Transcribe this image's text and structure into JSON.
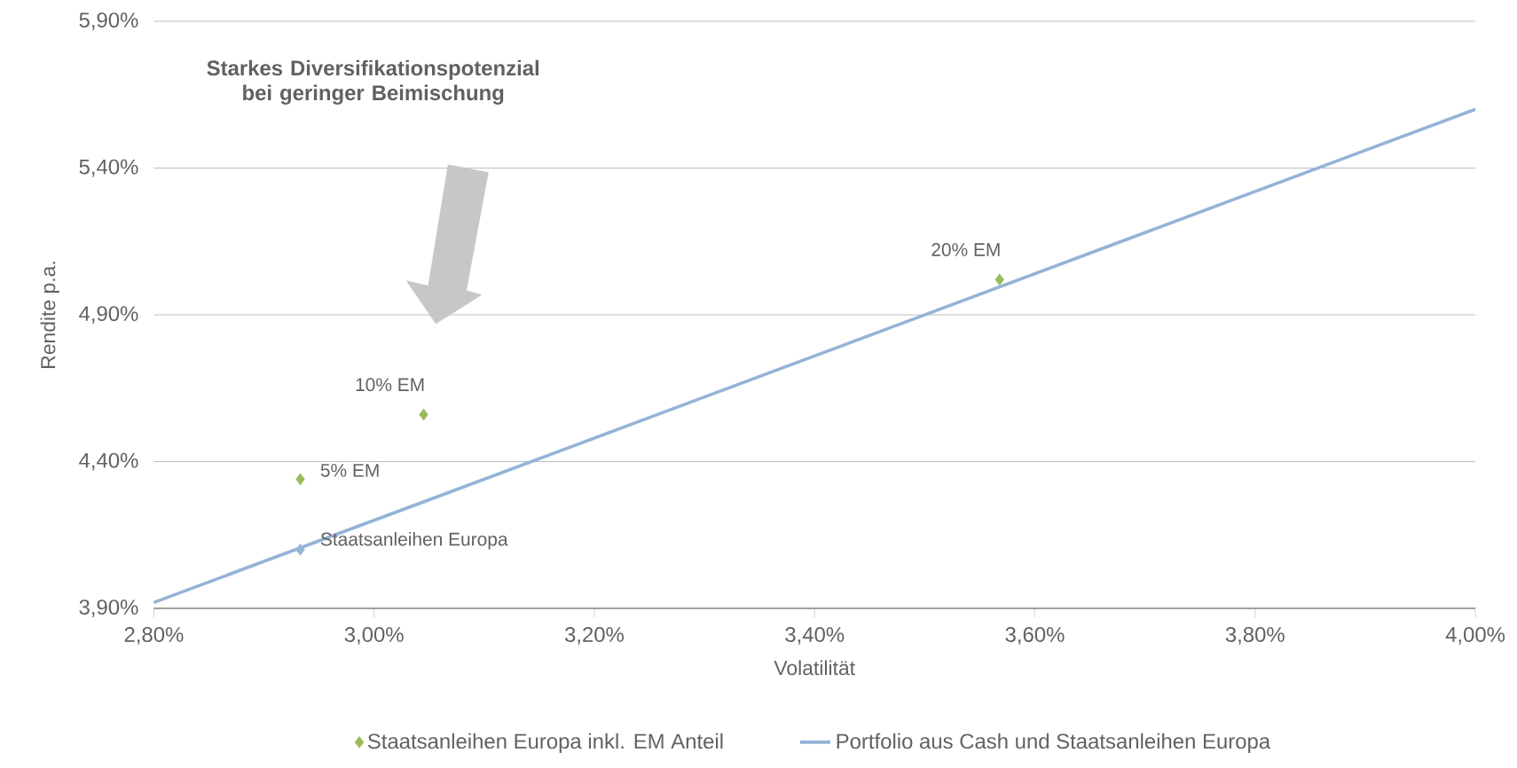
{
  "chart_data": {
    "type": "scatter",
    "xlabel": "Volatilität",
    "ylabel": "Rendite p.a.",
    "xlim": [
      2.8,
      4.0
    ],
    "ylim": [
      3.9,
      5.9
    ],
    "xticks": [
      {
        "value": 2.8,
        "label": "2,80%"
      },
      {
        "value": 3.0,
        "label": "3,00%"
      },
      {
        "value": 3.2,
        "label": "3,20%"
      },
      {
        "value": 3.4,
        "label": "3,40%"
      },
      {
        "value": 3.6,
        "label": "3,60%"
      },
      {
        "value": 3.8,
        "label": "3,80%"
      },
      {
        "value": 4.0,
        "label": "4,00%"
      }
    ],
    "yticks": [
      {
        "value": 3.9,
        "label": "3,90%"
      },
      {
        "value": 4.4,
        "label": "4,40%"
      },
      {
        "value": 4.9,
        "label": "4,90%"
      },
      {
        "value": 5.4,
        "label": "5,40%"
      },
      {
        "value": 5.9,
        "label": "5,90%"
      }
    ],
    "grid": "y",
    "legend": "bottom",
    "series": [
      {
        "name": "Staatsanleihen Europa inkl. EM Anteil",
        "type": "scatter",
        "marker": "diamond",
        "color": "#9bbb59",
        "x": [
          2.933,
          3.045,
          3.568
        ],
        "values": [
          4.34,
          4.56,
          5.02
        ]
      },
      {
        "name": "Portfolio aus Cash und Staatsanleihen Europa",
        "type": "line",
        "marker": "none",
        "color": "#95b3d7",
        "x": [
          2.8,
          4.0
        ],
        "values": [
          3.92,
          5.6
        ]
      },
      {
        "type": "scatter",
        "marker": "diamond",
        "color": "#95b3d7",
        "x": [
          2.933
        ],
        "values": [
          4.1
        ]
      }
    ],
    "annotations": [
      "Starkes Diversifikationspotenzial bei geringer Beimischung",
      {
        "text": "5% EM",
        "x": 2.933,
        "y": 4.34
      },
      {
        "text": "10% EM",
        "x": 3.045,
        "y": 4.56
      },
      {
        "text": "20% EM",
        "x": 3.568,
        "y": 5.02
      },
      {
        "text": "Staatsanleihen Europa",
        "x": 2.933,
        "y": 4.1
      }
    ]
  }
}
